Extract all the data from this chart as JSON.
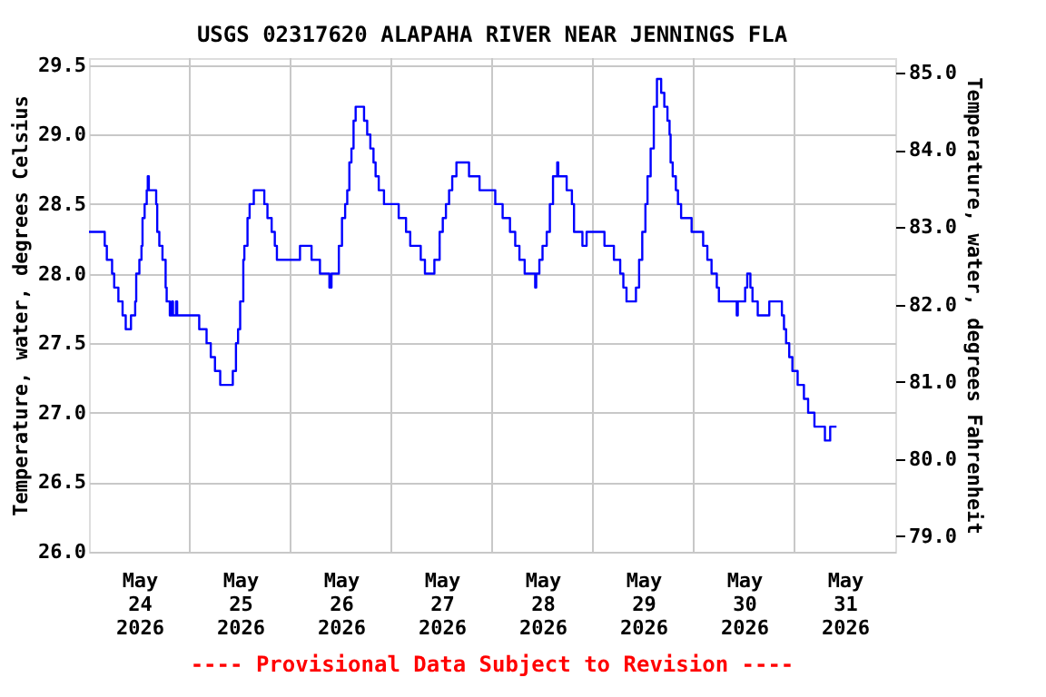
{
  "chart_data": {
    "type": "step",
    "title": "USGS 02317620 ALAPAHA RIVER NEAR JENNINGS FLA",
    "ylabel": "Temperature, water, degrees Celsius",
    "y2label": "Temperature, water, degrees Fahrenheit",
    "annotations": [
      "---- Provisional Data Subject to Revision ----"
    ],
    "x": [
      "2026-05-24T00:00",
      "2026-05-24T03:45",
      "2026-05-24T04:15",
      "2026-05-24T05:30",
      "2026-05-24T06:00",
      "2026-05-24T07:00",
      "2026-05-24T08:00",
      "2026-05-24T08:45",
      "2026-05-24T10:00",
      "2026-05-24T11:00",
      "2026-05-24T11:15",
      "2026-05-24T12:00",
      "2026-05-24T12:30",
      "2026-05-24T12:45",
      "2026-05-24T13:15",
      "2026-05-24T13:45",
      "2026-05-24T14:00",
      "2026-05-24T14:15",
      "2026-05-24T16:00",
      "2026-05-24T16:15",
      "2026-05-24T16:45",
      "2026-05-24T17:30",
      "2026-05-24T18:15",
      "2026-05-24T18:30",
      "2026-05-24T19:15",
      "2026-05-24T19:45",
      "2026-05-24T20:00",
      "2026-05-24T20:45",
      "2026-05-24T21:00",
      "2026-05-25T02:15",
      "2026-05-25T04:00",
      "2026-05-25T05:00",
      "2026-05-25T06:00",
      "2026-05-25T07:15",
      "2026-05-25T10:15",
      "2026-05-25T11:00",
      "2026-05-25T11:30",
      "2026-05-25T12:00",
      "2026-05-25T12:45",
      "2026-05-25T13:00",
      "2026-05-25T13:45",
      "2026-05-25T14:15",
      "2026-05-25T15:15",
      "2026-05-25T17:45",
      "2026-05-25T18:30",
      "2026-05-25T19:30",
      "2026-05-25T20:15",
      "2026-05-25T20:45",
      "2026-05-26T02:15",
      "2026-05-26T05:00",
      "2026-05-26T07:00",
      "2026-05-26T09:15",
      "2026-05-26T09:45",
      "2026-05-26T11:30",
      "2026-05-26T12:15",
      "2026-05-26T13:00",
      "2026-05-26T13:30",
      "2026-05-26T14:00",
      "2026-05-26T14:30",
      "2026-05-26T15:00",
      "2026-05-26T15:30",
      "2026-05-26T17:30",
      "2026-05-26T18:15",
      "2026-05-26T19:00",
      "2026-05-26T19:45",
      "2026-05-26T20:15",
      "2026-05-26T21:00",
      "2026-05-26T22:15",
      "2026-05-27T01:45",
      "2026-05-27T03:30",
      "2026-05-27T04:30",
      "2026-05-27T07:00",
      "2026-05-27T08:00",
      "2026-05-27T10:15",
      "2026-05-27T11:30",
      "2026-05-27T12:15",
      "2026-05-27T13:00",
      "2026-05-27T13:45",
      "2026-05-27T14:30",
      "2026-05-27T15:30",
      "2026-05-27T18:30",
      "2026-05-27T21:00",
      "2026-05-28T00:45",
      "2026-05-28T02:30",
      "2026-05-28T04:15",
      "2026-05-28T05:30",
      "2026-05-28T06:30",
      "2026-05-28T07:45",
      "2026-05-28T10:15",
      "2026-05-28T10:30",
      "2026-05-28T11:15",
      "2026-05-28T12:00",
      "2026-05-28T13:00",
      "2026-05-28T13:45",
      "2026-05-28T14:30",
      "2026-05-28T15:30",
      "2026-05-28T15:45",
      "2026-05-28T17:45",
      "2026-05-28T19:00",
      "2026-05-28T19:30",
      "2026-05-28T21:30",
      "2026-05-28T22:30",
      "2026-05-29T02:45",
      "2026-05-29T05:00",
      "2026-05-29T06:30",
      "2026-05-29T07:15",
      "2026-05-29T08:00",
      "2026-05-29T10:15",
      "2026-05-29T11:00",
      "2026-05-29T11:45",
      "2026-05-29T12:30",
      "2026-05-29T13:00",
      "2026-05-29T13:45",
      "2026-05-29T14:30",
      "2026-05-29T15:15",
      "2026-05-29T16:15",
      "2026-05-29T17:00",
      "2026-05-29T17:45",
      "2026-05-29T18:15",
      "2026-05-29T18:30",
      "2026-05-29T19:00",
      "2026-05-29T19:45",
      "2026-05-29T20:15",
      "2026-05-29T21:00",
      "2026-05-29T23:30",
      "2026-05-30T02:15",
      "2026-05-30T03:15",
      "2026-05-30T04:15",
      "2026-05-30T05:30",
      "2026-05-30T06:00",
      "2026-05-30T10:15",
      "2026-05-30T10:30",
      "2026-05-30T12:15",
      "2026-05-30T12:45",
      "2026-05-30T13:30",
      "2026-05-30T14:00",
      "2026-05-30T15:15",
      "2026-05-30T18:00",
      "2026-05-30T21:00",
      "2026-05-30T21:30",
      "2026-05-30T22:00",
      "2026-05-30T22:45",
      "2026-05-30T23:30",
      "2026-05-31T00:45",
      "2026-05-31T02:15",
      "2026-05-31T03:15",
      "2026-05-31T04:45",
      "2026-05-31T07:15",
      "2026-05-31T08:30",
      "2026-05-31T10:00"
    ],
    "series": [
      {
        "color": "#0000ff",
        "values": [
          28.3,
          28.2,
          28.1,
          28.0,
          27.9,
          27.8,
          27.7,
          27.6,
          27.7,
          27.8,
          28.0,
          28.1,
          28.2,
          28.4,
          28.5,
          28.6,
          28.7,
          28.6,
          28.5,
          28.3,
          28.2,
          28.1,
          27.9,
          27.8,
          27.7,
          27.8,
          27.7,
          27.8,
          27.7,
          27.6,
          27.5,
          27.4,
          27.3,
          27.2,
          27.3,
          27.5,
          27.6,
          27.8,
          28.1,
          28.2,
          28.4,
          28.5,
          28.6,
          28.5,
          28.4,
          28.3,
          28.2,
          28.1,
          28.2,
          28.1,
          28.0,
          27.9,
          28.0,
          28.2,
          28.4,
          28.5,
          28.6,
          28.8,
          28.9,
          29.1,
          29.2,
          29.1,
          29.0,
          28.9,
          28.8,
          28.7,
          28.6,
          28.5,
          28.4,
          28.3,
          28.2,
          28.1,
          28.0,
          28.1,
          28.3,
          28.4,
          28.5,
          28.6,
          28.7,
          28.8,
          28.7,
          28.6,
          28.5,
          28.4,
          28.3,
          28.2,
          28.1,
          28.0,
          27.9,
          28.0,
          28.1,
          28.2,
          28.3,
          28.5,
          28.7,
          28.8,
          28.7,
          28.6,
          28.5,
          28.3,
          28.2,
          28.3,
          28.2,
          28.1,
          28.0,
          27.9,
          27.8,
          27.9,
          28.1,
          28.3,
          28.5,
          28.7,
          28.9,
          29.2,
          29.4,
          29.3,
          29.2,
          29.1,
          29.0,
          28.8,
          28.7,
          28.6,
          28.5,
          28.4,
          28.3,
          28.2,
          28.1,
          28.0,
          27.9,
          27.8,
          27.7,
          27.8,
          27.9,
          28.0,
          27.9,
          27.8,
          27.7,
          27.8,
          27.7,
          27.6,
          27.5,
          27.4,
          27.3,
          27.2,
          27.1,
          27.0,
          26.9,
          26.8,
          26.9,
          26.9
        ]
      }
    ],
    "xlim": [
      "2026-05-24T00:00",
      "2026-06-01T00:00"
    ],
    "xticks": [
      {
        "value": "2026-05-24T12:00",
        "label": "May 24 2026"
      },
      {
        "value": "2026-05-25T12:00",
        "label": "May 25 2026"
      },
      {
        "value": "2026-05-26T12:00",
        "label": "May 26 2026"
      },
      {
        "value": "2026-05-27T12:00",
        "label": "May 27 2026"
      },
      {
        "value": "2026-05-28T12:00",
        "label": "May 28 2026"
      },
      {
        "value": "2026-05-29T12:00",
        "label": "May 29 2026"
      },
      {
        "value": "2026-05-30T12:00",
        "label": "May 30 2026"
      },
      {
        "value": "2026-05-31T12:00",
        "label": "May 31 2026"
      },
      {
        "value": "2026-05-25T00:00",
        "label": null
      },
      {
        "value": "2026-05-26T00:00",
        "label": null
      },
      {
        "value": "2026-05-27T00:00",
        "label": null
      },
      {
        "value": "2026-05-28T00:00",
        "label": null
      },
      {
        "value": "2026-05-29T00:00",
        "label": null
      },
      {
        "value": "2026-05-30T00:00",
        "label": null
      },
      {
        "value": "2026-05-31T00:00",
        "label": null
      }
    ],
    "ylim": [
      26.0,
      29.55
    ],
    "yticks": [
      {
        "value": 26,
        "label": "26.0"
      },
      {
        "value": 26.5,
        "label": "26.5"
      },
      {
        "value": 27,
        "label": "27.0"
      },
      {
        "value": 27.5,
        "label": "27.5"
      },
      {
        "value": 28,
        "label": "28.0"
      },
      {
        "value": 28.5,
        "label": "28.5"
      },
      {
        "value": 29,
        "label": "29.0"
      },
      {
        "value": 29.5,
        "label": "29.5"
      }
    ],
    "y2lim": [
      78.8,
      85.19
    ],
    "y2ticks": [
      {
        "value": 79,
        "label": "79.0"
      },
      {
        "value": 80,
        "label": "80.0"
      },
      {
        "value": 81,
        "label": "81.0"
      },
      {
        "value": 82,
        "label": "82.0"
      },
      {
        "value": 83,
        "label": "83.0"
      },
      {
        "value": 84,
        "label": "84.0"
      },
      {
        "value": 85,
        "label": "85.0"
      }
    ],
    "grid": true
  }
}
